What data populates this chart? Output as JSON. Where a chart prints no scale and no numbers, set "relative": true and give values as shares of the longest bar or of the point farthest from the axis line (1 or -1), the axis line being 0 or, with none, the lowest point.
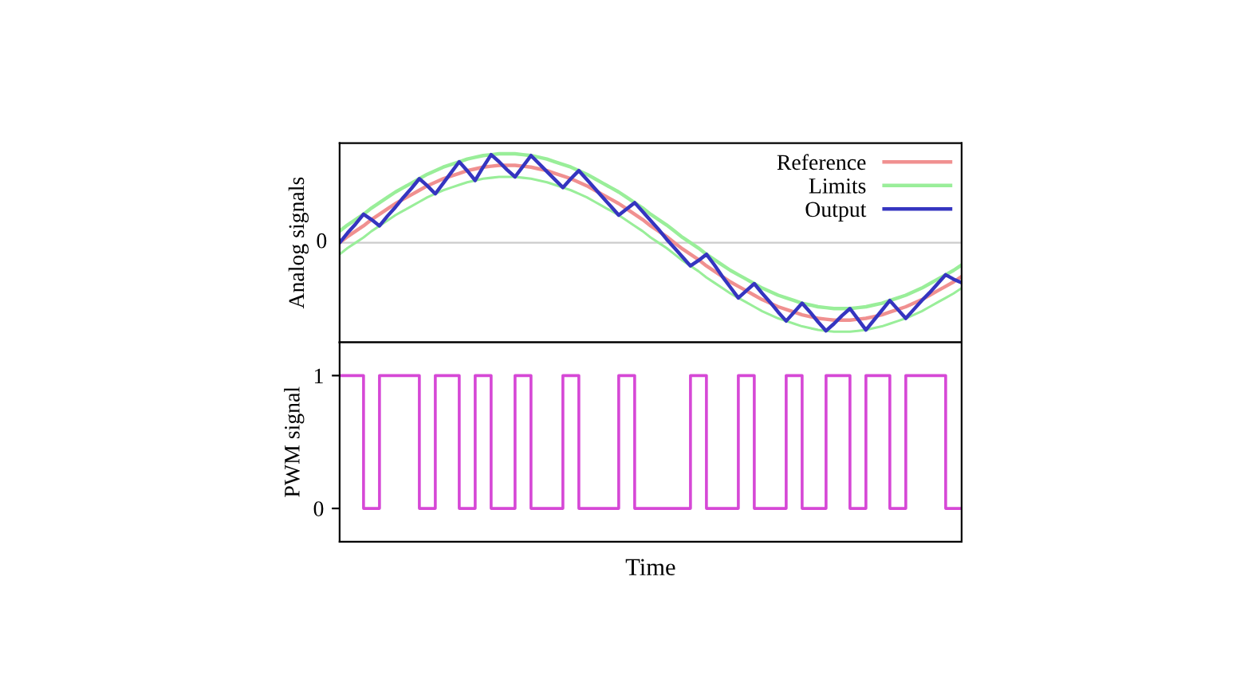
{
  "chart_data": [
    {
      "type": "line",
      "ylabel": "Analog signals",
      "relative": true,
      "legend": "top right",
      "categories": [
        null,
        null,
        null,
        null,
        null,
        null,
        null,
        null,
        null,
        null,
        null,
        null,
        null,
        null,
        null,
        null,
        null,
        null,
        null,
        null,
        null,
        null,
        null,
        null,
        null,
        null,
        null,
        null,
        null,
        null,
        null,
        null,
        null,
        null,
        null,
        null,
        null,
        null,
        null,
        null,
        null,
        null,
        null,
        null,
        null,
        null,
        null,
        null,
        null,
        null,
        null,
        null,
        null,
        null,
        null,
        null,
        null,
        null,
        null,
        null,
        null,
        null,
        null,
        null,
        null,
        null,
        null,
        null,
        null,
        null,
        null,
        null,
        null,
        null,
        null,
        null,
        null,
        null,
        null
      ],
      "ref_lines": [
        {
          "axis": "y",
          "value": 0,
          "label": "0",
          "color": "#cccccc"
        }
      ],
      "series": [
        {
          "name": "Reference",
          "color": "#f09090",
          "values": [
            0,
            0.07,
            0.13,
            0.19,
            0.26,
            0.32,
            0.38,
            0.44,
            0.49,
            0.54,
            0.59,
            0.64,
            0.68,
            0.72,
            0.75,
            0.78,
            0.81,
            0.83,
            0.85,
            0.86,
            0.87,
            0.87,
            0.87,
            0.86,
            0.85,
            0.83,
            0.81,
            0.78,
            0.75,
            0.72,
            0.68,
            0.64,
            0.59,
            0.54,
            0.49,
            0.44,
            0.38,
            0.32,
            0.26,
            0.19,
            0.13,
            0.07,
            0,
            -0.07,
            -0.13,
            -0.19,
            -0.26,
            -0.32,
            -0.38,
            -0.44,
            -0.49,
            -0.54,
            -0.59,
            -0.64,
            -0.68,
            -0.72,
            -0.75,
            -0.78,
            -0.81,
            -0.83,
            -0.85,
            -0.86,
            -0.87,
            -0.87,
            -0.87,
            -0.86,
            -0.85,
            -0.83,
            -0.81,
            -0.78,
            -0.75,
            -0.72,
            -0.68,
            -0.64,
            -0.59,
            -0.54,
            -0.49,
            -0.44,
            -0.38
          ]
        },
        {
          "name": "Limits",
          "color": "#99ee99",
          "values": [
            0.13,
            0.2,
            0.26,
            0.32,
            0.39,
            0.45,
            0.51,
            0.57,
            0.62,
            0.67,
            0.72,
            0.77,
            0.81,
            0.85,
            0.88,
            0.91,
            0.94,
            0.96,
            0.98,
            0.99,
            1,
            1,
            1,
            0.99,
            0.98,
            0.96,
            0.94,
            0.91,
            0.88,
            0.85,
            0.81,
            0.77,
            0.72,
            0.67,
            0.62,
            0.57,
            0.51,
            0.45,
            0.39,
            0.32,
            0.26,
            0.2,
            0.13,
            0.06,
            0,
            -0.06,
            -0.13,
            -0.19,
            -0.25,
            -0.31,
            -0.36,
            -0.41,
            -0.46,
            -0.51,
            -0.55,
            -0.59,
            -0.62,
            -0.65,
            -0.68,
            -0.7,
            -0.72,
            -0.73,
            -0.74,
            -0.74,
            -0.74,
            -0.73,
            -0.72,
            -0.7,
            -0.68,
            -0.65,
            -0.62,
            -0.59,
            -0.55,
            -0.51,
            -0.46,
            -0.41,
            -0.36,
            -0.31,
            -0.25
          ]
        },
        {
          "color": "#99ee99",
          "values": [
            -0.13,
            -0.06,
            0,
            0.06,
            0.13,
            0.19,
            0.25,
            0.31,
            0.36,
            0.41,
            0.46,
            0.51,
            0.55,
            0.59,
            0.62,
            0.65,
            0.68,
            0.7,
            0.72,
            0.73,
            0.74,
            0.74,
            0.74,
            0.73,
            0.72,
            0.7,
            0.68,
            0.65,
            0.62,
            0.59,
            0.55,
            0.51,
            0.46,
            0.41,
            0.36,
            0.31,
            0.25,
            0.19,
            0.13,
            0.06,
            0,
            -0.06,
            -0.13,
            -0.2,
            -0.26,
            -0.32,
            -0.39,
            -0.45,
            -0.51,
            -0.57,
            -0.62,
            -0.67,
            -0.72,
            -0.77,
            -0.81,
            -0.85,
            -0.88,
            -0.91,
            -0.94,
            -0.96,
            -0.98,
            -0.99,
            -1,
            -1,
            -1,
            -0.99,
            -0.98,
            -0.96,
            -0.94,
            -0.91,
            -0.88,
            -0.85,
            -0.81,
            -0.77,
            -0.72,
            -0.67,
            -0.62,
            -0.57,
            -0.51
          ]
        },
        {
          "name": "Output",
          "color": "#3535c0",
          "values": [
            0,
            0.11,
            0.21,
            0.32,
            0.26,
            0.19,
            0.3,
            0.4,
            0.51,
            0.61,
            0.72,
            0.64,
            0.55,
            0.67,
            0.79,
            0.91,
            0.81,
            0.7,
            0.85,
            0.99,
            0.91,
            0.82,
            0.74,
            0.86,
            0.98,
            0.89,
            0.8,
            0.71,
            0.62,
            0.72,
            0.81,
            0.71,
            0.61,
            0.51,
            0.41,
            0.31,
            0.38,
            0.45,
            0.35,
            0.25,
            0.15,
            0.04,
            -0.06,
            -0.16,
            -0.26,
            -0.2,
            -0.13,
            -0.25,
            -0.38,
            -0.5,
            -0.62,
            -0.54,
            -0.46,
            -0.57,
            -0.67,
            -0.78,
            -0.88,
            -0.78,
            -0.68,
            -0.78,
            -0.89,
            -0.99,
            -0.91,
            -0.82,
            -0.74,
            -0.86,
            -0.98,
            -0.87,
            -0.76,
            -0.65,
            -0.75,
            -0.85,
            -0.75,
            -0.65,
            -0.56,
            -0.46,
            -0.36,
            -0.41,
            -0.45
          ]
        }
      ]
    },
    {
      "type": "step",
      "ylabel": "PWM signal",
      "xlabel": "Time",
      "ylim": [
        -0.25,
        1.25
      ],
      "yticks": [
        0,
        1
      ],
      "categories": [
        null,
        null,
        null,
        null,
        null,
        null,
        null,
        null,
        null,
        null,
        null,
        null,
        null,
        null,
        null,
        null,
        null,
        null,
        null,
        null,
        null,
        null,
        null,
        null,
        null,
        null,
        null,
        null,
        null,
        null,
        null,
        null,
        null,
        null,
        null,
        null,
        null,
        null,
        null,
        null,
        null,
        null,
        null,
        null,
        null,
        null,
        null,
        null,
        null,
        null,
        null,
        null,
        null,
        null,
        null,
        null,
        null,
        null,
        null,
        null,
        null,
        null,
        null,
        null,
        null,
        null,
        null,
        null,
        null,
        null,
        null,
        null,
        null,
        null,
        null,
        null,
        null,
        null,
        null
      ],
      "series": [
        {
          "color": "#d648d6",
          "values": [
            1,
            1,
            1,
            0,
            0,
            1,
            1,
            1,
            1,
            1,
            0,
            0,
            1,
            1,
            1,
            0,
            0,
            1,
            1,
            0,
            0,
            0,
            1,
            1,
            0,
            0,
            0,
            0,
            1,
            1,
            0,
            0,
            0,
            0,
            0,
            1,
            1,
            0,
            0,
            0,
            0,
            0,
            0,
            0,
            1,
            1,
            0,
            0,
            0,
            0,
            1,
            1,
            0,
            0,
            0,
            0,
            1,
            1,
            0,
            0,
            0,
            1,
            1,
            1,
            0,
            0,
            1,
            1,
            1,
            0,
            0,
            1,
            1,
            1,
            1,
            1,
            0,
            0,
            0
          ]
        }
      ]
    }
  ]
}
